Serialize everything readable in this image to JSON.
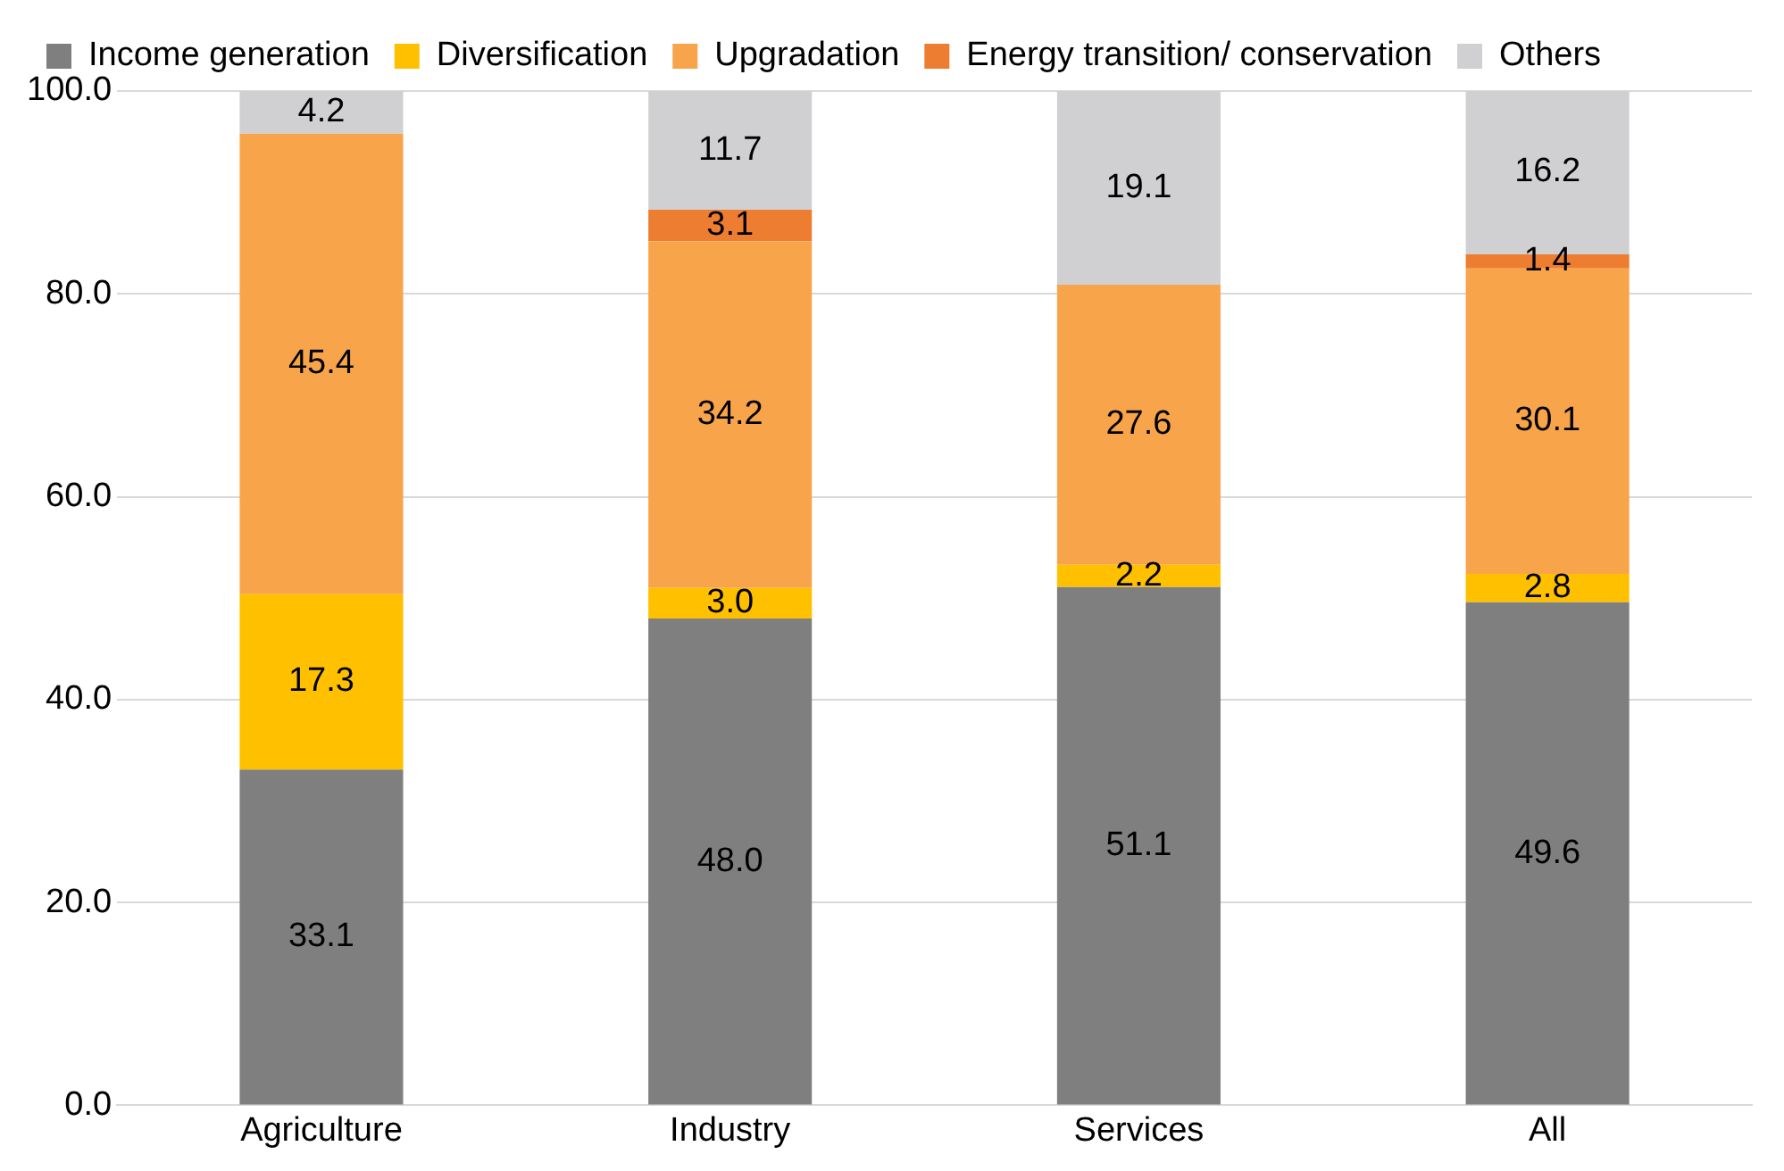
{
  "chart_data": {
    "type": "bar",
    "stacked": true,
    "categories": [
      "Agriculture",
      "Industry",
      "Services",
      "All"
    ],
    "series": [
      {
        "name": "Income generation",
        "color": "#7f7f7f",
        "values": [
          33.1,
          48.0,
          51.1,
          49.6
        ],
        "value_labels": [
          "33.1",
          "48.0",
          "51.1",
          "49.6"
        ]
      },
      {
        "name": "Diversification",
        "color": "#ffc000",
        "values": [
          17.3,
          3.0,
          2.2,
          2.8
        ],
        "value_labels": [
          "17.3",
          "3.0",
          "2.2",
          "2.8"
        ]
      },
      {
        "name": "Upgradation",
        "color": "#f8a44b",
        "values": [
          45.4,
          34.2,
          27.6,
          30.1
        ],
        "value_labels": [
          "45.4",
          "34.2",
          "27.6",
          "30.1"
        ]
      },
      {
        "name": "Energy transition/ conservation",
        "color": "#ed7d31",
        "values": [
          null,
          3.1,
          null,
          1.4
        ],
        "value_labels": [
          null,
          "3.1",
          null,
          "1.4"
        ]
      },
      {
        "name": "Others",
        "color": "#d0d0d2",
        "values": [
          4.2,
          11.7,
          19.1,
          16.2
        ],
        "value_labels": [
          "4.2",
          "11.7",
          "19.1",
          "16.2"
        ]
      }
    ],
    "ylim": [
      0,
      100
    ],
    "yticks": [
      {
        "value": 0,
        "label": "0.0"
      },
      {
        "value": 20,
        "label": "20.0"
      },
      {
        "value": 40,
        "label": "40.0"
      },
      {
        "value": 60,
        "label": "60.0"
      },
      {
        "value": 80,
        "label": "80.0"
      },
      {
        "value": 100,
        "label": "100.0"
      }
    ],
    "grid": "y",
    "legend": "top"
  }
}
